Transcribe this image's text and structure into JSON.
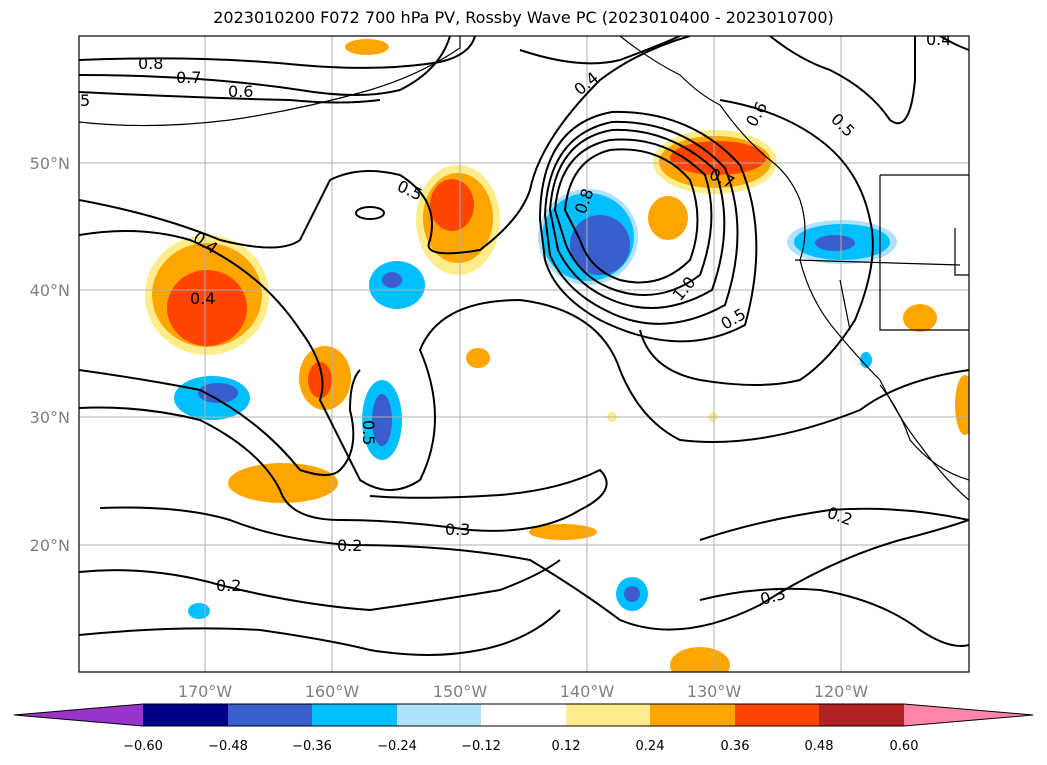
{
  "title": "2023010200 F072 700 hPa PV, Rossby Wave PC (2023010400 - 2023010700)",
  "map": {
    "lat_labels": [
      "50°N",
      "40°N",
      "30°N",
      "20°N"
    ],
    "lon_labels": [
      "170°W",
      "160°W",
      "150°W",
      "140°W",
      "130°W",
      "120°W"
    ],
    "contour_labels": [
      "0.8",
      "0.7",
      "0.6",
      "5",
      "0.4",
      "0.4",
      "0.5",
      "0.4",
      "0.8",
      "1.0",
      "0.5",
      "0.6",
      "0.5",
      "0.7",
      "0.5",
      "0.3",
      "0.2",
      "0.2",
      "0.2",
      "0.3",
      "0.4"
    ]
  },
  "colorbar": {
    "ticks": [
      "−0.60",
      "−0.48",
      "−0.36",
      "−0.24",
      "−0.12",
      "0.12",
      "0.24",
      "0.36",
      "0.48",
      "0.60"
    ],
    "colors": {
      "neg_extend": "#9933cc",
      "n060": "#00008b",
      "n048": "#3a5fcd",
      "n036": "#00bfff",
      "n024": "#b0e2ff",
      "n012": "#ffffff",
      "p012": "#ffec8b",
      "p024": "#ffa500",
      "p036": "#ff4500",
      "p048": "#b22222",
      "pos_extend": "#ff85a8"
    }
  }
}
